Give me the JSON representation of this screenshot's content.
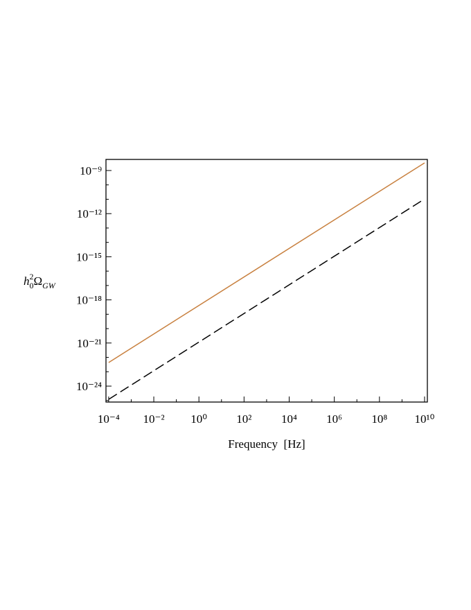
{
  "chart_data": {
    "type": "line",
    "xlabel": "Frequency  [Hz]",
    "ylabel": [
      "h",
      "0",
      "2",
      "Ω",
      "GW"
    ],
    "xscale": "log",
    "yscale": "log",
    "x": [
      0.0001,
      10000000000
    ],
    "series": [
      {
        "color": "#c8803f",
        "style": "solid",
        "values": [
          4.4e-23,
          3.4e-09
        ]
      },
      {
        "color": "#000000",
        "style": "dashed",
        "values": [
          1.2e-25,
          1.05e-11
        ]
      }
    ],
    "xlim": [
      7.6e-05,
      13300000000
    ],
    "ylim": [
      7.8e-26,
      5.9e-09
    ],
    "xticks": [
      {
        "value": 0.0001,
        "label": "10⁻⁴"
      },
      {
        "value": 0.01,
        "label": "10⁻²"
      },
      {
        "value": 1,
        "label": "10⁰"
      },
      {
        "value": 100,
        "label": "10²"
      },
      {
        "value": 10000,
        "label": "10⁴"
      },
      {
        "value": 1000000,
        "label": "10⁶"
      },
      {
        "value": 100000000,
        "label": "10⁸"
      },
      {
        "value": 10000000000,
        "label": "10¹⁰"
      }
    ],
    "xminorticks": [
      0.001,
      0.1,
      10,
      1000,
      100000,
      10000000,
      1000000000
    ],
    "yticks": [
      {
        "value": 1e-09,
        "label": "10⁻⁹"
      },
      {
        "value": 1e-12,
        "label": "10⁻¹²"
      },
      {
        "value": 1e-15,
        "label": "10⁻¹⁵"
      },
      {
        "value": 1e-18,
        "label": "10⁻¹⁸"
      },
      {
        "value": 1e-21,
        "label": "10⁻²¹"
      },
      {
        "value": 1e-24,
        "label": "10⁻²⁴"
      }
    ],
    "yminorticks": [
      1e-10,
      1e-11,
      1e-13,
      1e-14,
      1e-16,
      1e-17,
      1e-19,
      1e-20,
      1e-22,
      1e-23,
      1e-25
    ]
  }
}
